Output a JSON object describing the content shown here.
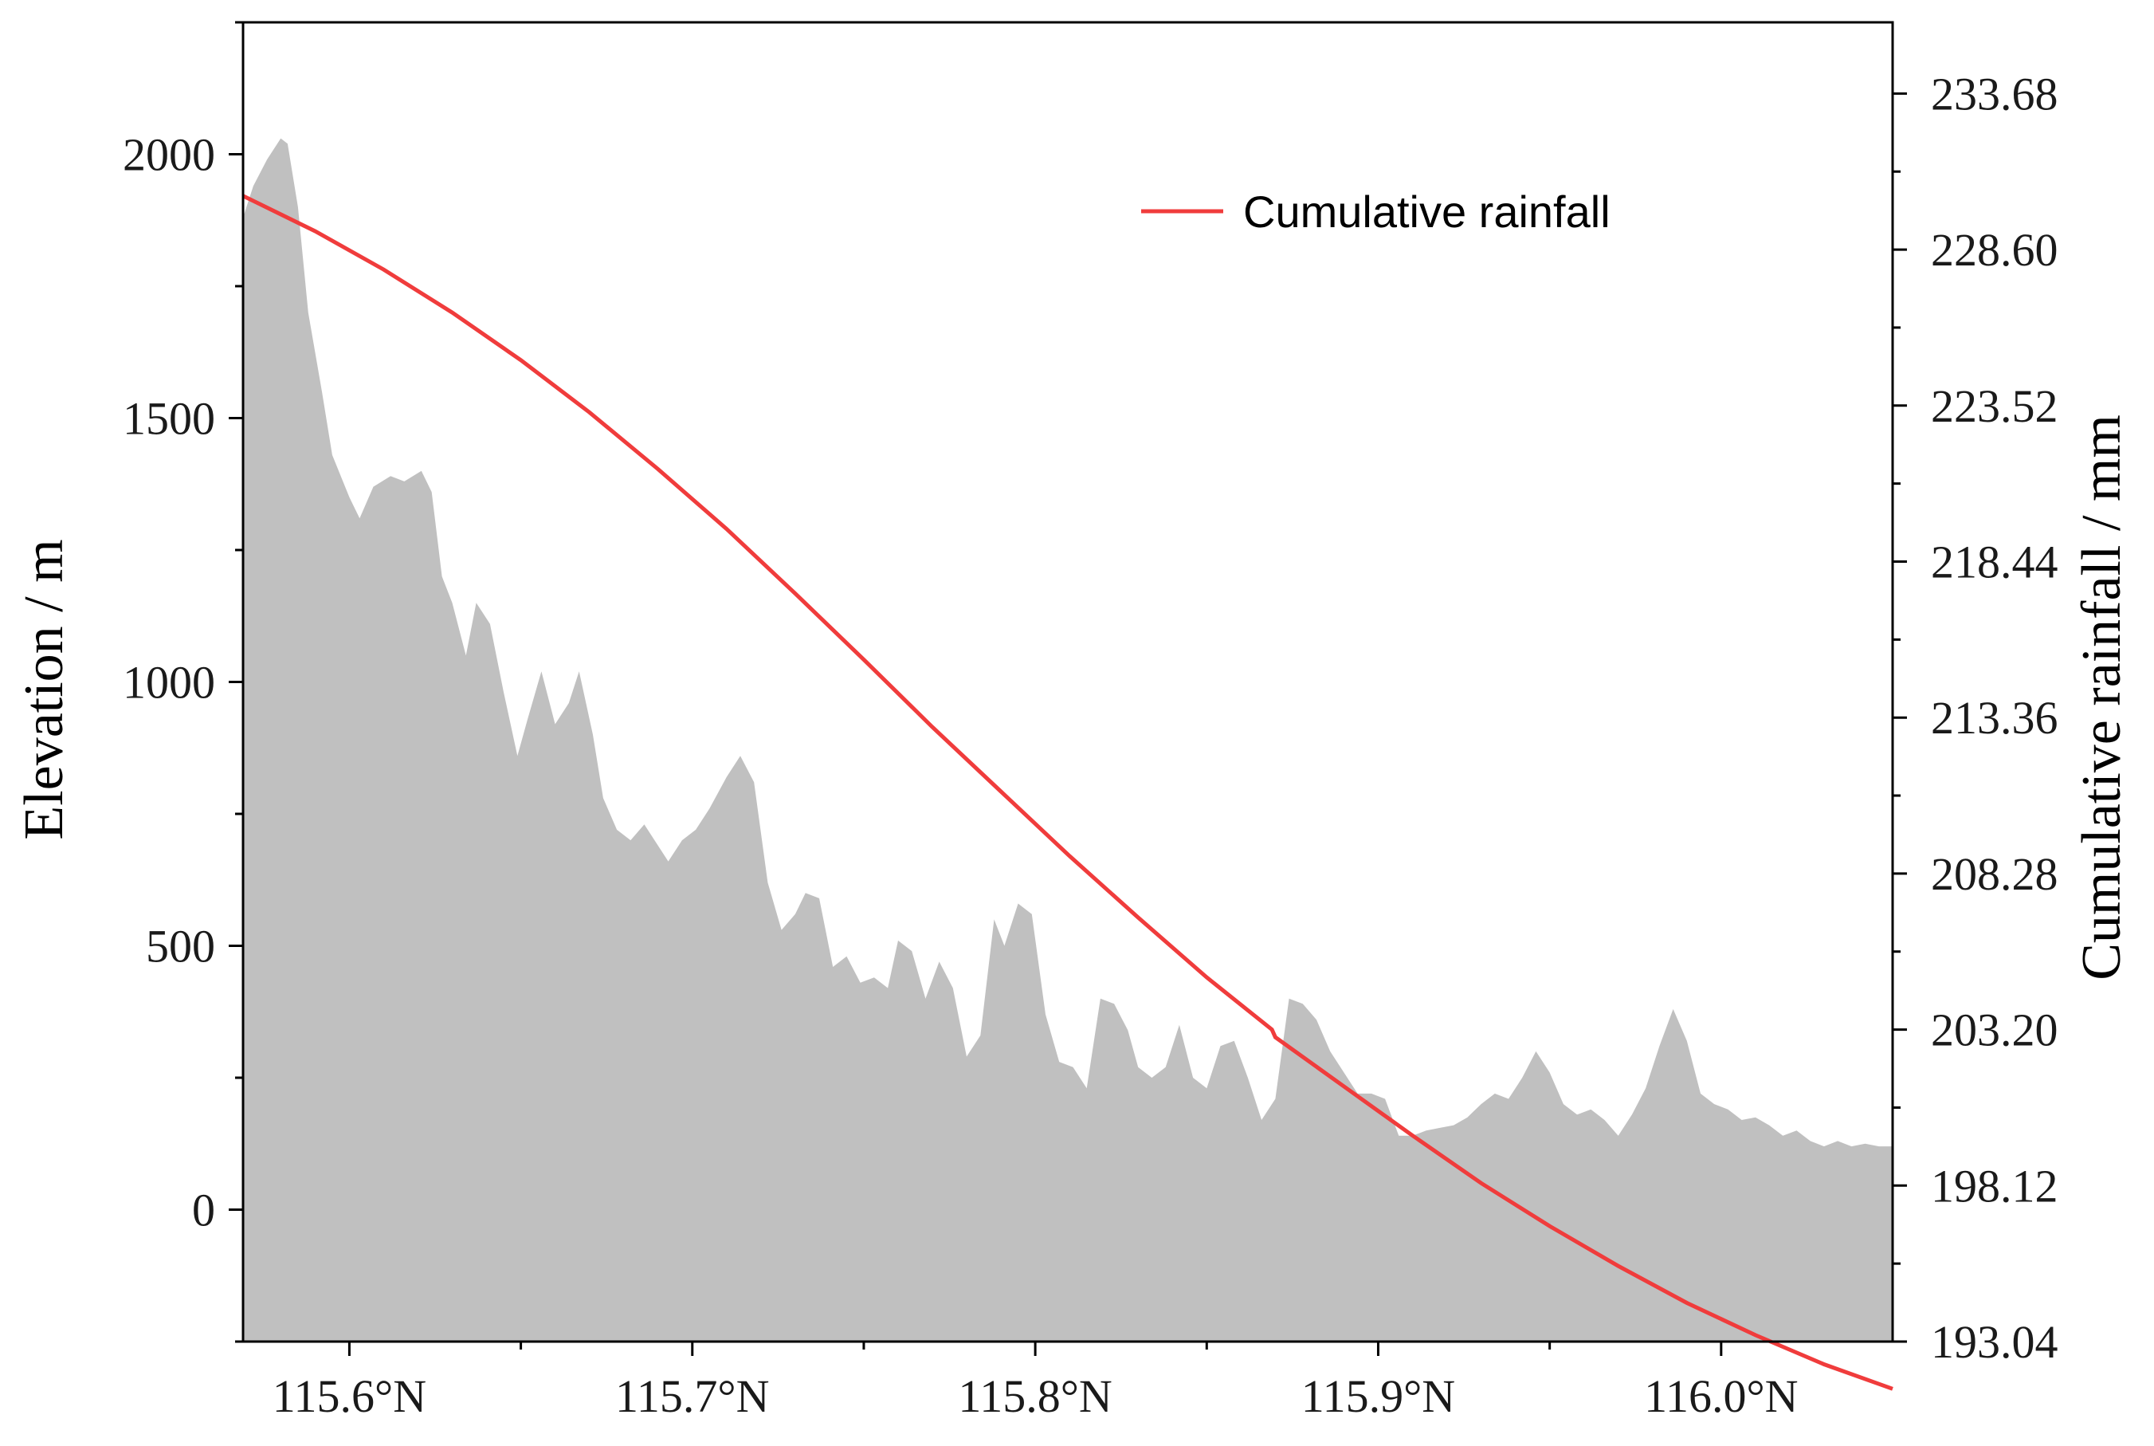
{
  "chart_data": {
    "type": "area",
    "xlabel": "",
    "ylabel_left": "Elevation / m",
    "ylabel_right": "Cumulative rainfall / mm",
    "x_tick_labels": [
      "115.6°N",
      "115.7°N",
      "115.8°N",
      "115.9°N",
      "116.0°N"
    ],
    "x_ticks": [
      115.6,
      115.7,
      115.8,
      115.9,
      116.0
    ],
    "xlim": [
      115.569,
      116.05
    ],
    "y_left_ticks": [
      0,
      500,
      1000,
      1500,
      2000
    ],
    "y_left_tick_labels": [
      "0",
      "500",
      "1000",
      "1500",
      "2000"
    ],
    "y_left_lim": [
      -250,
      2250
    ],
    "y_right_ticks": [
      193.04,
      198.12,
      203.2,
      208.28,
      213.36,
      218.44,
      223.52,
      228.6,
      233.68
    ],
    "y_right_tick_labels": [
      "193.04",
      "198.12",
      "203.20",
      "208.28",
      "213.36",
      "218.44",
      "223.52",
      "228.60",
      "233.68"
    ],
    "y_right_lim": [
      193.04,
      236.0
    ],
    "grid": false,
    "legend": {
      "position": "top-right",
      "entries": [
        "Cumulative rainfall"
      ]
    },
    "series": [
      {
        "name": "Elevation",
        "kind": "area",
        "axis": "left",
        "color": "#c0c0c0",
        "x": [
          115.569,
          115.572,
          115.576,
          115.58,
          115.582,
          115.585,
          115.588,
          115.592,
          115.595,
          115.6,
          115.603,
          115.607,
          115.612,
          115.616,
          115.621,
          115.624,
          115.627,
          115.63,
          115.634,
          115.637,
          115.641,
          115.645,
          115.649,
          115.652,
          115.656,
          115.66,
          115.664,
          115.667,
          115.671,
          115.674,
          115.678,
          115.682,
          115.686,
          115.69,
          115.693,
          115.697,
          115.701,
          115.705,
          115.71,
          115.714,
          115.718,
          115.722,
          115.726,
          115.73,
          115.733,
          115.737,
          115.741,
          115.745,
          115.749,
          115.753,
          115.757,
          115.76,
          115.764,
          115.768,
          115.772,
          115.776,
          115.78,
          115.784,
          115.788,
          115.791,
          115.795,
          115.799,
          115.803,
          115.807,
          115.811,
          115.815,
          115.819,
          115.823,
          115.827,
          115.83,
          115.834,
          115.838,
          115.842,
          115.846,
          115.85,
          115.854,
          115.858,
          115.862,
          115.866,
          115.87,
          115.874,
          115.878,
          115.882,
          115.886,
          115.89,
          115.894,
          115.898,
          115.902,
          115.906,
          115.91,
          115.914,
          115.918,
          115.922,
          115.926,
          115.93,
          115.934,
          115.938,
          115.942,
          115.946,
          115.95,
          115.954,
          115.958,
          115.962,
          115.966,
          115.97,
          115.974,
          115.978,
          115.982,
          115.986,
          115.99,
          115.994,
          115.998,
          116.002,
          116.006,
          116.01,
          116.014,
          116.018,
          116.022,
          116.026,
          116.03,
          116.034,
          116.038,
          116.042,
          116.046,
          116.05
        ],
        "values": [
          1880,
          1940,
          1990,
          2030,
          2020,
          1900,
          1700,
          1550,
          1430,
          1350,
          1310,
          1370,
          1390,
          1380,
          1400,
          1360,
          1200,
          1150,
          1050,
          1150,
          1110,
          980,
          860,
          930,
          1020,
          920,
          960,
          1020,
          900,
          780,
          720,
          700,
          730,
          690,
          660,
          700,
          720,
          760,
          820,
          860,
          810,
          620,
          530,
          560,
          600,
          590,
          460,
          480,
          430,
          440,
          420,
          510,
          490,
          400,
          470,
          420,
          290,
          330,
          550,
          500,
          580,
          560,
          370,
          280,
          270,
          230,
          400,
          390,
          340,
          270,
          250,
          270,
          350,
          250,
          230,
          310,
          320,
          250,
          170,
          210,
          400,
          390,
          360,
          300,
          260,
          220,
          220,
          210,
          140,
          140,
          150,
          155,
          160,
          175,
          200,
          220,
          210,
          250,
          300,
          260,
          200,
          180,
          190,
          170,
          140,
          180,
          230,
          310,
          380,
          320,
          220,
          200,
          190,
          170,
          175,
          160,
          140,
          150,
          130,
          120,
          130,
          120,
          125,
          120,
          120
        ]
      },
      {
        "name": "Cumulative rainfall",
        "kind": "line",
        "axis": "right",
        "color": "#f03c3c",
        "x": [
          115.569,
          115.59,
          115.61,
          115.63,
          115.65,
          115.67,
          115.69,
          115.71,
          115.73,
          115.75,
          115.77,
          115.79,
          115.81,
          115.83,
          115.85,
          115.869,
          115.87,
          115.89,
          115.91,
          115.93,
          115.95,
          115.97,
          115.99,
          116.01,
          116.03,
          116.05
        ],
        "values": [
          230.35,
          229.2,
          227.95,
          226.55,
          225.0,
          223.3,
          221.45,
          219.5,
          217.4,
          215.25,
          213.05,
          210.95,
          208.85,
          206.85,
          204.9,
          203.2,
          202.95,
          201.35,
          199.75,
          198.2,
          196.8,
          195.5,
          194.3,
          193.25,
          192.3,
          191.5
        ]
      }
    ]
  }
}
